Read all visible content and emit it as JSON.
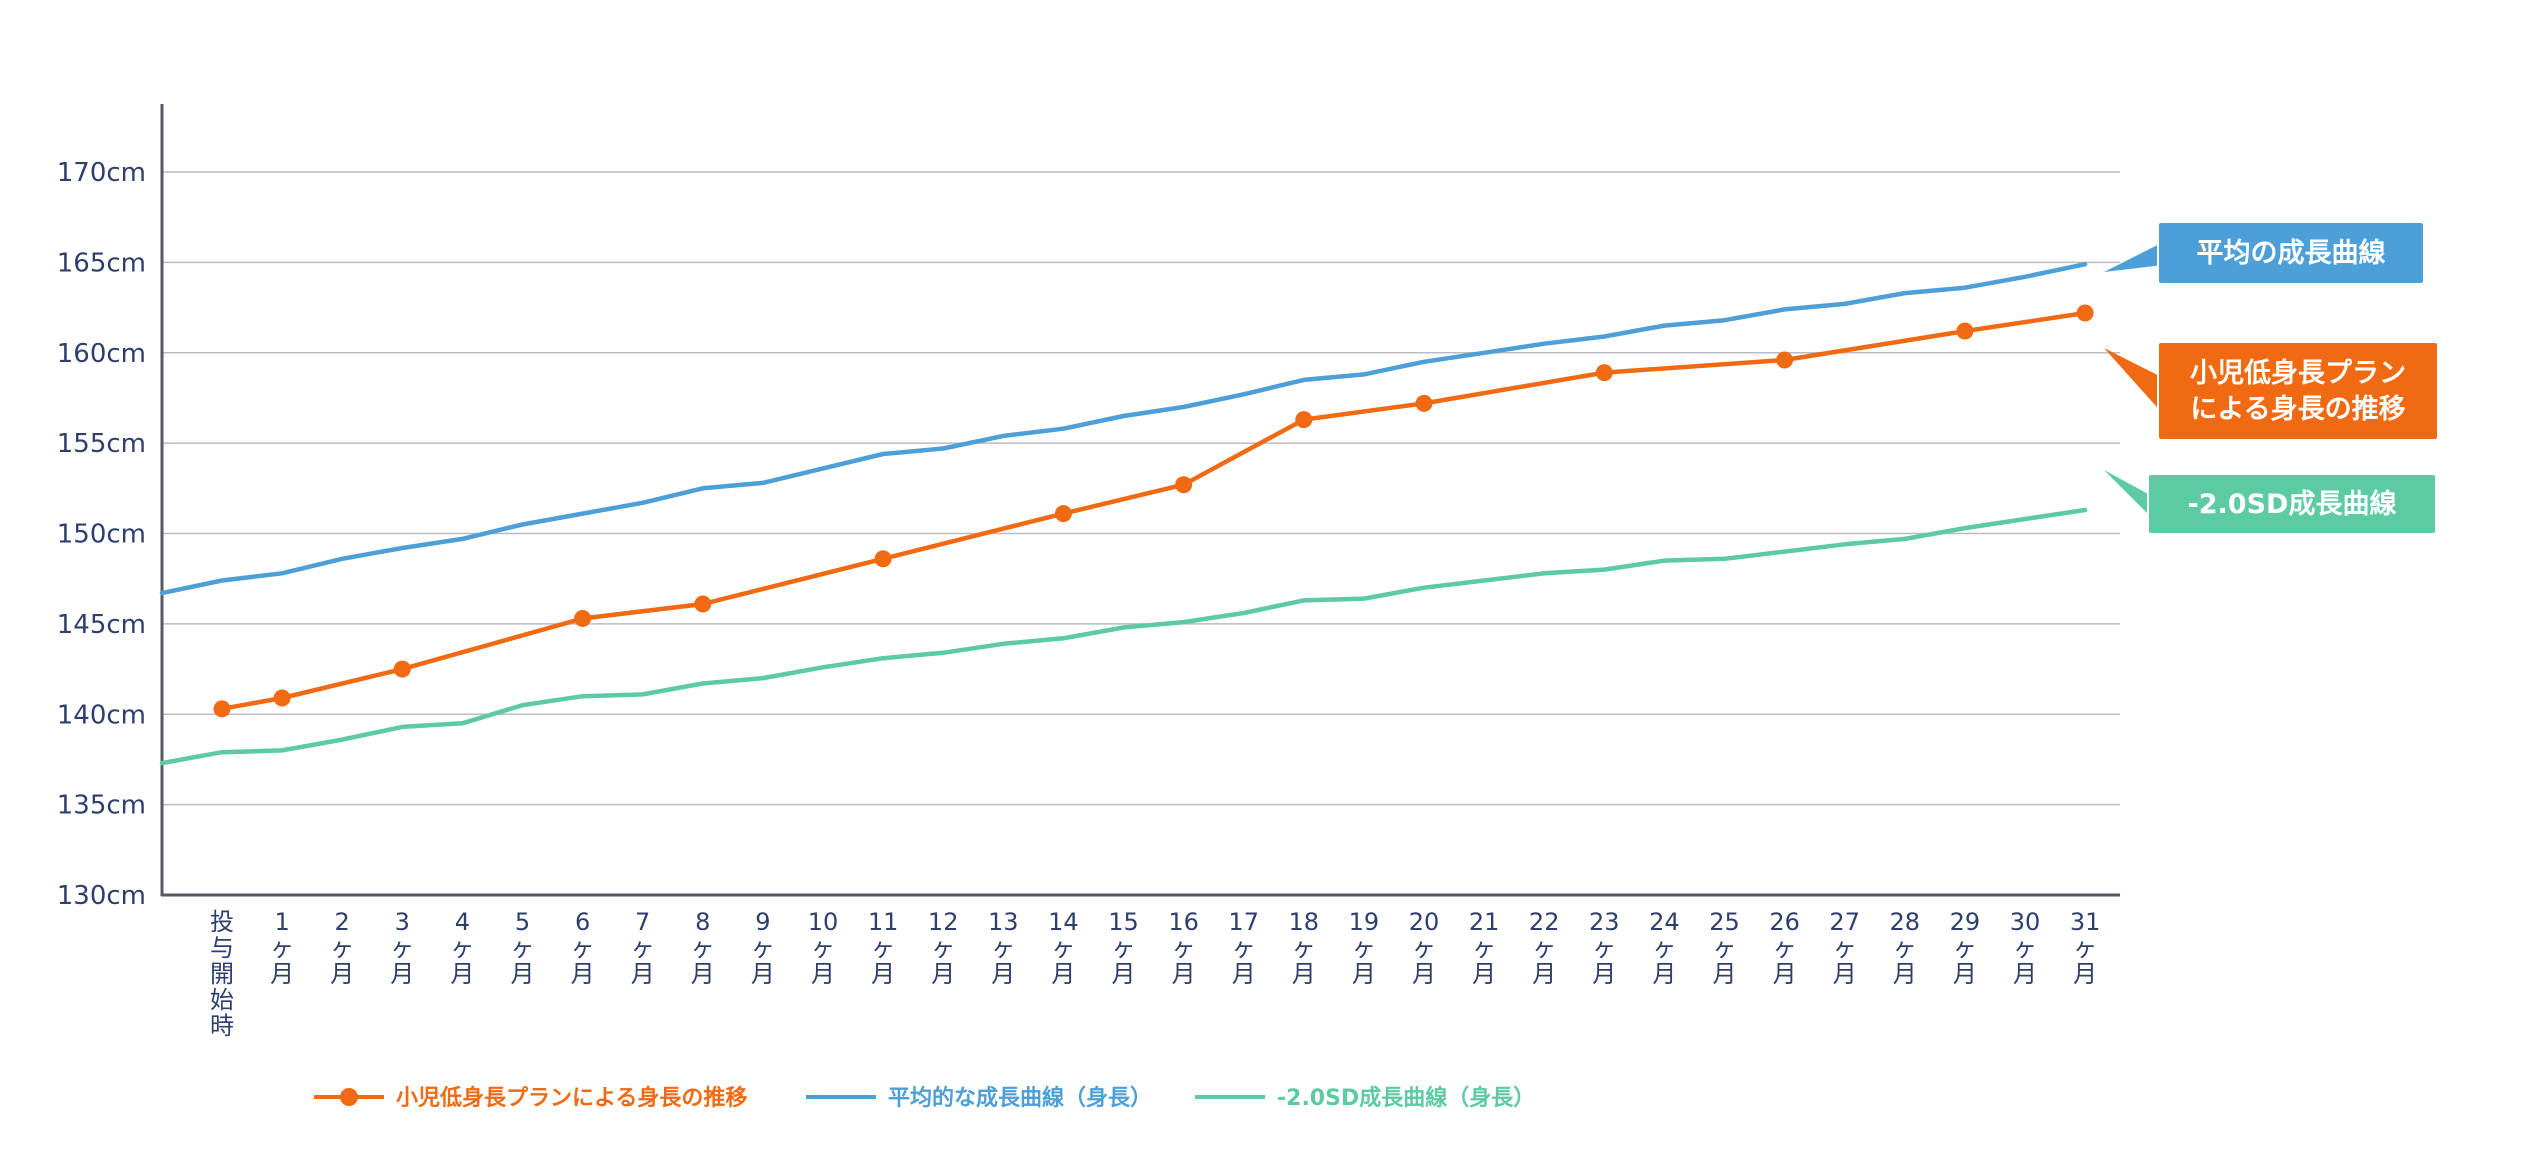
{
  "chart_data": {
    "type": "line",
    "title": "",
    "xlabel": "",
    "ylabel": "",
    "ylim": [
      130,
      170
    ],
    "y_ticks": [
      {
        "value": 130,
        "label": "130cm"
      },
      {
        "value": 135,
        "label": "135cm"
      },
      {
        "value": 140,
        "label": "140cm"
      },
      {
        "value": 145,
        "label": "145cm"
      },
      {
        "value": 150,
        "label": "150cm"
      },
      {
        "value": 155,
        "label": "155cm"
      },
      {
        "value": 160,
        "label": "160cm"
      },
      {
        "value": 165,
        "label": "165cm"
      },
      {
        "value": 170,
        "label": "170cm"
      }
    ],
    "grid": true,
    "categories": [
      "投与開始時",
      "1ヶ月",
      "2ヶ月",
      "3ヶ月",
      "4ヶ月",
      "5ヶ月",
      "6ヶ月",
      "7ヶ月",
      "8ヶ月",
      "9ヶ月",
      "10ヶ月",
      "11ヶ月",
      "12ヶ月",
      "13ヶ月",
      "14ヶ月",
      "15ヶ月",
      "16ヶ月",
      "17ヶ月",
      "18ヶ月",
      "19ヶ月",
      "20ヶ月",
      "21ヶ月",
      "22ヶ月",
      "23ヶ月",
      "24ヶ月",
      "25ヶ月",
      "26ヶ月",
      "27ヶ月",
      "28ヶ月",
      "29ヶ月",
      "30ヶ月",
      "31ヶ月"
    ],
    "series": [
      {
        "id": "treatment",
        "name": "小児低身長プランによる身長の推移",
        "callout": [
          "小児低身長プラン",
          "による身長の推移"
        ],
        "color": "#f06a14",
        "markers": true,
        "points": [
          {
            "x": 0,
            "y": 140.3
          },
          {
            "x": 1,
            "y": 140.9
          },
          {
            "x": 3,
            "y": 142.5
          },
          {
            "x": 6,
            "y": 145.3
          },
          {
            "x": 8,
            "y": 146.1
          },
          {
            "x": 11,
            "y": 148.6
          },
          {
            "x": 14,
            "y": 151.1
          },
          {
            "x": 16,
            "y": 152.7
          },
          {
            "x": 18,
            "y": 156.3
          },
          {
            "x": 20,
            "y": 157.2
          },
          {
            "x": 23,
            "y": 158.9
          },
          {
            "x": 26,
            "y": 159.6
          },
          {
            "x": 29,
            "y": 161.2
          },
          {
            "x": 31,
            "y": 162.2
          }
        ]
      },
      {
        "id": "average",
        "name": "平均的な成長曲線（身長）",
        "callout": [
          "平均の成長曲線"
        ],
        "color": "#4d9fd8",
        "markers": false,
        "points": [
          {
            "x": -1,
            "y": 146.7
          },
          {
            "x": 0,
            "y": 147.4
          },
          {
            "x": 1,
            "y": 147.8
          },
          {
            "x": 2,
            "y": 148.6
          },
          {
            "x": 3,
            "y": 149.2
          },
          {
            "x": 4,
            "y": 149.7
          },
          {
            "x": 5,
            "y": 150.5
          },
          {
            "x": 6,
            "y": 151.1
          },
          {
            "x": 7,
            "y": 151.7
          },
          {
            "x": 8,
            "y": 152.5
          },
          {
            "x": 9,
            "y": 152.8
          },
          {
            "x": 10,
            "y": 153.6
          },
          {
            "x": 11,
            "y": 154.4
          },
          {
            "x": 12,
            "y": 154.7
          },
          {
            "x": 13,
            "y": 155.4
          },
          {
            "x": 14,
            "y": 155.8
          },
          {
            "x": 15,
            "y": 156.5
          },
          {
            "x": 16,
            "y": 157.0
          },
          {
            "x": 17,
            "y": 157.7
          },
          {
            "x": 18,
            "y": 158.5
          },
          {
            "x": 19,
            "y": 158.8
          },
          {
            "x": 20,
            "y": 159.5
          },
          {
            "x": 21,
            "y": 160.0
          },
          {
            "x": 22,
            "y": 160.5
          },
          {
            "x": 23,
            "y": 160.9
          },
          {
            "x": 24,
            "y": 161.5
          },
          {
            "x": 25,
            "y": 161.8
          },
          {
            "x": 26,
            "y": 162.4
          },
          {
            "x": 27,
            "y": 162.7
          },
          {
            "x": 28,
            "y": 163.3
          },
          {
            "x": 29,
            "y": 163.6
          },
          {
            "x": 30,
            "y": 164.2
          },
          {
            "x": 31,
            "y": 164.9
          }
        ]
      },
      {
        "id": "minus2sd",
        "name": "-2.0SD成長曲線（身長）",
        "callout": [
          "-2.0SD成長曲線"
        ],
        "color": "#5ccaa3",
        "markers": false,
        "points": [
          {
            "x": -1,
            "y": 137.3
          },
          {
            "x": 0,
            "y": 137.9
          },
          {
            "x": 1,
            "y": 138.0
          },
          {
            "x": 2,
            "y": 138.6
          },
          {
            "x": 3,
            "y": 139.3
          },
          {
            "x": 4,
            "y": 139.5
          },
          {
            "x": 5,
            "y": 140.5
          },
          {
            "x": 6,
            "y": 141.0
          },
          {
            "x": 7,
            "y": 141.1
          },
          {
            "x": 8,
            "y": 141.7
          },
          {
            "x": 9,
            "y": 142.0
          },
          {
            "x": 10,
            "y": 142.6
          },
          {
            "x": 11,
            "y": 143.1
          },
          {
            "x": 12,
            "y": 143.4
          },
          {
            "x": 13,
            "y": 143.9
          },
          {
            "x": 14,
            "y": 144.2
          },
          {
            "x": 15,
            "y": 144.8
          },
          {
            "x": 16,
            "y": 145.1
          },
          {
            "x": 17,
            "y": 145.6
          },
          {
            "x": 18,
            "y": 146.3
          },
          {
            "x": 19,
            "y": 146.4
          },
          {
            "x": 20,
            "y": 147.0
          },
          {
            "x": 21,
            "y": 147.4
          },
          {
            "x": 22,
            "y": 147.8
          },
          {
            "x": 23,
            "y": 148.0
          },
          {
            "x": 24,
            "y": 148.5
          },
          {
            "x": 25,
            "y": 148.6
          },
          {
            "x": 26,
            "y": 149.0
          },
          {
            "x": 27,
            "y": 149.4
          },
          {
            "x": 28,
            "y": 149.7
          },
          {
            "x": 29,
            "y": 150.3
          },
          {
            "x": 30,
            "y": 150.8
          },
          {
            "x": 31,
            "y": 151.3
          }
        ]
      }
    ],
    "legend_placement": "bottom-left"
  }
}
